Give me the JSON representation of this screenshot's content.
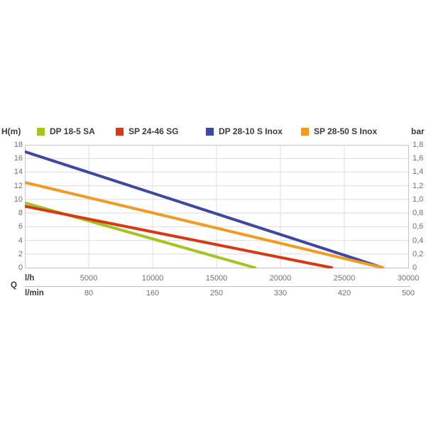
{
  "legend": {
    "left_axis_title": "H(m)",
    "right_axis_title": "bar",
    "items": [
      {
        "label": "DP 18-5 SA"
      },
      {
        "label": "SP 24-46 SG"
      },
      {
        "label": "DP 28-10 S Inox"
      },
      {
        "label": "SP 28-50 S Inox"
      }
    ]
  },
  "axes": {
    "left_ticks": [
      "18",
      "16",
      "14",
      "12",
      "10",
      "8",
      "6",
      "4",
      "2",
      "0"
    ],
    "right_ticks": [
      "1,8",
      "1,6",
      "1,4",
      "1,2",
      "1,0",
      "0,8",
      "0,6",
      "0,4",
      "0,2",
      "0"
    ],
    "bottom": {
      "row1_unit": "l/h",
      "row1_ticks": [
        "5000",
        "10000",
        "15000",
        "20000",
        "25000",
        "30000"
      ],
      "q_label": "Q",
      "row2_unit": "l/min",
      "row2_ticks": [
        "80",
        "160",
        "250",
        "330",
        "420",
        "500"
      ]
    }
  },
  "chart_data": {
    "type": "line",
    "title": "",
    "xlabel": "Q",
    "x_unit_primary": "l/h",
    "x_unit_secondary": "l/min",
    "ylabel_left": "H(m)",
    "ylabel_right": "bar",
    "x_range_lh": [
      0,
      30000
    ],
    "x_ticks_lh": [
      5000,
      10000,
      15000,
      20000,
      25000,
      30000
    ],
    "x_ticks_lmin": [
      80,
      160,
      250,
      330,
      420,
      500
    ],
    "y_range_m": [
      0,
      18
    ],
    "y_range_bar": [
      0,
      1.8
    ],
    "grid": true,
    "legend_position": "top",
    "grid_color": "#dcdcdc",
    "border_color": "#c6c6c6",
    "series": [
      {
        "name": "DP 18-5 SA",
        "color": "#a3c520",
        "points_lh_m": [
          [
            0,
            9.5
          ],
          [
            18000,
            0
          ]
        ]
      },
      {
        "name": "SP 24-46 SG",
        "color": "#d63a15",
        "points_lh_m": [
          [
            0,
            9.0
          ],
          [
            24000,
            0
          ]
        ]
      },
      {
        "name": "DP 28-10 S Inox",
        "color": "#3d48a1",
        "points_lh_m": [
          [
            0,
            17.0
          ],
          [
            28000,
            0
          ]
        ]
      },
      {
        "name": "SP 28-50 S Inox",
        "color": "#f09c23",
        "points_lh_m": [
          [
            0,
            12.5
          ],
          [
            28000,
            0
          ]
        ]
      }
    ]
  }
}
